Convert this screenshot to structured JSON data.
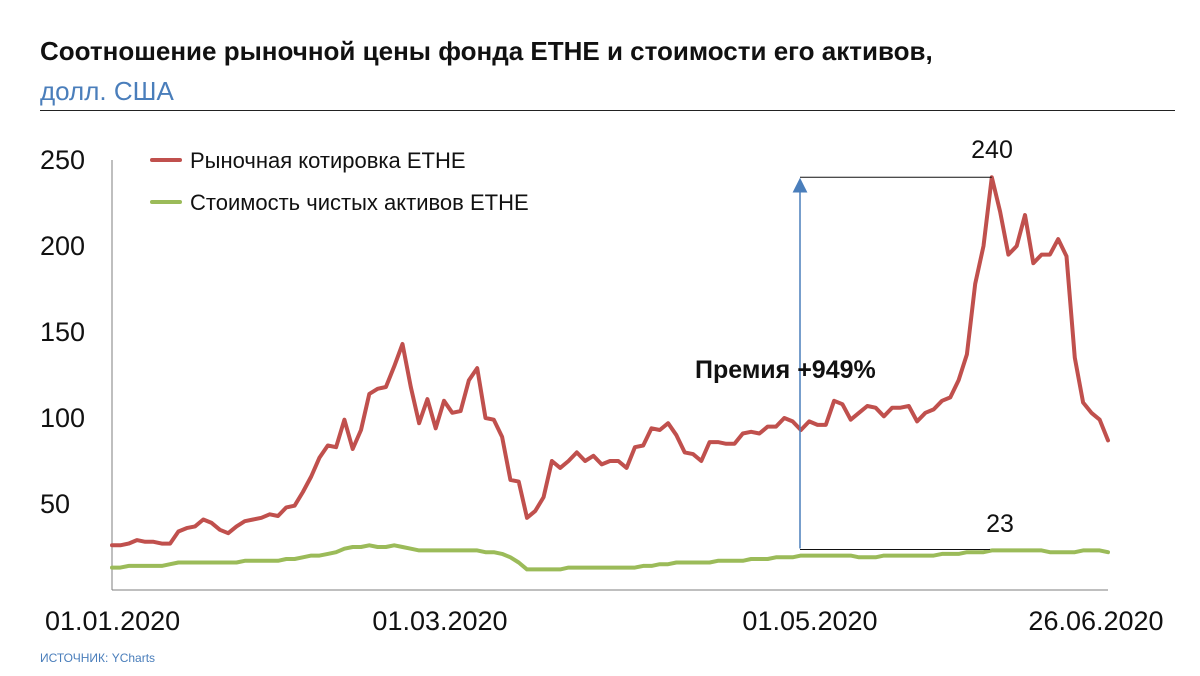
{
  "header": {
    "title": "Соотношение рыночной цены фонда ETHE и стоимости его активов,",
    "subtitle": "долл. США"
  },
  "footer": {
    "source": "ИСТОЧНИК: YCharts"
  },
  "colors": {
    "market": "#c0504d",
    "nav": "#9bbb59",
    "arrow": "#4a7ebb",
    "axis": "#7f7f7f"
  },
  "chart_data": {
    "type": "line",
    "title": "Соотношение рыночной цены фонда ETHE и стоимости его активов,",
    "subtitle": "долл. США",
    "xlabel": "",
    "ylabel": "",
    "ylim": [
      0,
      250
    ],
    "yticks": [
      50,
      100,
      150,
      200,
      250
    ],
    "xticks": [
      "01.01.2020",
      "01.03.2020",
      "01.05.2020",
      "26.06.2020"
    ],
    "grid": false,
    "legend_position": "top-left",
    "series": [
      {
        "name": "Рыночная котировка ETHE",
        "color": "#c0504d",
        "values": [
          26,
          26,
          27,
          29,
          28,
          28,
          27,
          27,
          34,
          36,
          37,
          41,
          39,
          35,
          33,
          37,
          40,
          41,
          42,
          44,
          43,
          48,
          49,
          57,
          66,
          77,
          84,
          83,
          99,
          82,
          93,
          114,
          117,
          118,
          130,
          143,
          118,
          97,
          111,
          94,
          110,
          103,
          104,
          122,
          129,
          100,
          99,
          89,
          64,
          63,
          42,
          46,
          54,
          75,
          71,
          75,
          80,
          75,
          78,
          73,
          75,
          75,
          71,
          83,
          84,
          94,
          93,
          97,
          90,
          80,
          79,
          75,
          86,
          86,
          85,
          85,
          91,
          92,
          91,
          95,
          95,
          100,
          98,
          93,
          98,
          96,
          96,
          110,
          108,
          99,
          103,
          107,
          106,
          101,
          106,
          106,
          107,
          98,
          103,
          105,
          110,
          112,
          122,
          137,
          178,
          200,
          240,
          220,
          195,
          200,
          218,
          190,
          195,
          195,
          204,
          194,
          135,
          109,
          103,
          99,
          87
        ],
        "annotations": [
          {
            "label": "240"
          }
        ]
      },
      {
        "name": "Стоимость чистых активов ETHE",
        "color": "#9bbb59",
        "values": [
          13,
          13,
          14,
          14,
          14,
          14,
          14,
          15,
          16,
          16,
          16,
          16,
          16,
          16,
          16,
          16,
          17,
          17,
          17,
          17,
          17,
          18,
          18,
          19,
          20,
          20,
          21,
          22,
          24,
          25,
          25,
          26,
          25,
          25,
          26,
          25,
          24,
          23,
          23,
          23,
          23,
          23,
          23,
          23,
          23,
          22,
          22,
          21,
          19,
          16,
          12,
          12,
          12,
          12,
          12,
          13,
          13,
          13,
          13,
          13,
          13,
          13,
          13,
          13,
          14,
          14,
          15,
          15,
          16,
          16,
          16,
          16,
          16,
          17,
          17,
          17,
          17,
          18,
          18,
          18,
          19,
          19,
          19,
          20,
          20,
          20,
          20,
          20,
          20,
          20,
          19,
          19,
          19,
          20,
          20,
          20,
          20,
          20,
          20,
          20,
          21,
          21,
          21,
          22,
          22,
          22,
          23,
          23,
          23,
          23,
          23,
          23,
          23,
          22,
          22,
          22,
          22,
          23,
          23,
          23,
          22
        ],
        "annotations": [
          {
            "label": "23"
          }
        ]
      }
    ],
    "premium_annotation": "Премия +949%"
  }
}
